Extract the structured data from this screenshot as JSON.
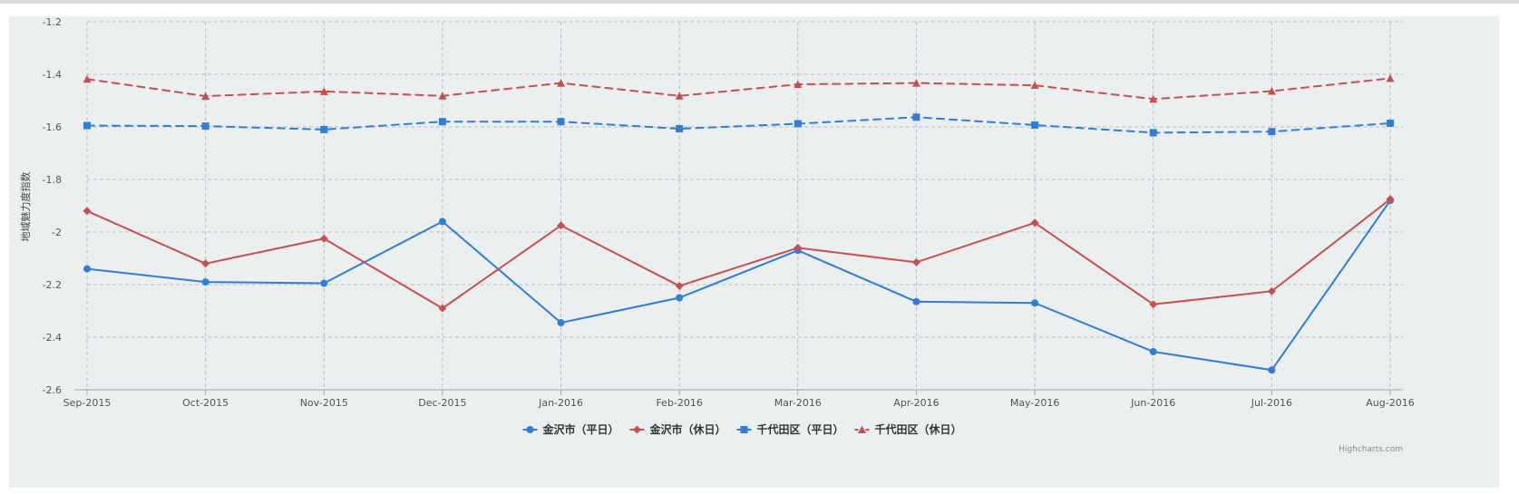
{
  "chart_data": {
    "type": "line",
    "title": "",
    "xlabel": "",
    "ylabel": "地域魅力度指数",
    "categories": [
      "Sep-2015",
      "Oct-2015",
      "Nov-2015",
      "Dec-2015",
      "Jan-2016",
      "Feb-2016",
      "Mar-2016",
      "Apr-2016",
      "May-2016",
      "Jun-2016",
      "Jul-2016",
      "Aug-2016"
    ],
    "ylim": [
      -2.6,
      -1.2
    ],
    "yticks": [
      -1.2,
      -1.4,
      -1.6,
      -1.8,
      -2,
      -2.2,
      -2.4,
      -2.6
    ],
    "grid": true,
    "legend_position": "bottom-center",
    "series": [
      {
        "name": "金沢市（平日）",
        "color": "#2f7ed8",
        "marker": "circle",
        "dash": "solid",
        "values": [
          -2.14,
          -2.19,
          -2.195,
          -1.96,
          -2.345,
          -2.25,
          -2.07,
          -2.265,
          -2.27,
          -2.455,
          -2.525,
          -1.88
        ]
      },
      {
        "name": "金沢市（休日）",
        "color": "#c6504f",
        "marker": "diamond",
        "dash": "solid",
        "values": [
          -1.92,
          -2.12,
          -2.025,
          -2.29,
          -1.975,
          -2.205,
          -2.06,
          -2.115,
          -1.965,
          -2.275,
          -2.225,
          -1.875
        ]
      },
      {
        "name": "千代田区（平日）",
        "color": "#2f7ed8",
        "marker": "square",
        "dash": "dashed",
        "values": [
          -1.595,
          -1.597,
          -1.61,
          -1.58,
          -1.58,
          -1.607,
          -1.588,
          -1.563,
          -1.593,
          -1.622,
          -1.618,
          -1.586
        ]
      },
      {
        "name": "千代田区（休日）",
        "color": "#c6504f",
        "marker": "triangle",
        "dash": "dashed",
        "values": [
          -1.418,
          -1.483,
          -1.465,
          -1.482,
          -1.433,
          -1.482,
          -1.438,
          -1.433,
          -1.442,
          -1.494,
          -1.464,
          -1.415
        ]
      }
    ],
    "credits": "Highcharts.com"
  }
}
